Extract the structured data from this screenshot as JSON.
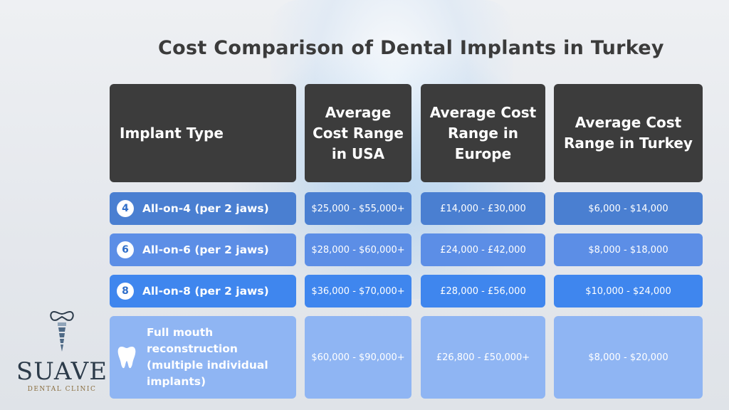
{
  "title": "Cost Comparison of Dental Implants in Turkey",
  "headers": {
    "type": "Implant Type",
    "usa": "Average Cost Range in USA",
    "europe": "Average Cost Range in Europe",
    "turkey": "Average Cost Range in Turkey"
  },
  "rows": [
    {
      "badge": "4",
      "type": "All-on-4 (per 2 jaws)",
      "usa": "$25,000 - $55,000+",
      "europe": "£14,000 - £30,000",
      "turkey": "$6,000 - $14,000"
    },
    {
      "badge": "6",
      "type": "All-on-6 (per 2 jaws)",
      "usa": "$28,000 - $60,000+",
      "europe": "£24,000 - £42,000",
      "turkey": "$8,000 - $18,000"
    },
    {
      "badge": "8",
      "type": "All-on-8 (per 2 jaws)",
      "usa": "$36,000 - $70,000+",
      "europe": "£28,000 - £56,000",
      "turkey": "$10,000 - $24,000"
    },
    {
      "icon": "tooth-icon",
      "type": "Full mouth reconstruction (multiple individual implants)",
      "usa": "$60,000 - $90,000+",
      "europe": "£26,800 - £50,000+",
      "turkey": "$8,000 - $20,000"
    }
  ],
  "logo": {
    "name": "SUAVE",
    "subtitle": "DENTAL CLINIC"
  },
  "colors": {
    "header_bg": "#3c3c3c",
    "row1": "#4a7fd1",
    "row2": "#5c8ee6",
    "row3": "#3f86ee",
    "row4": "#8fb5f3"
  }
}
